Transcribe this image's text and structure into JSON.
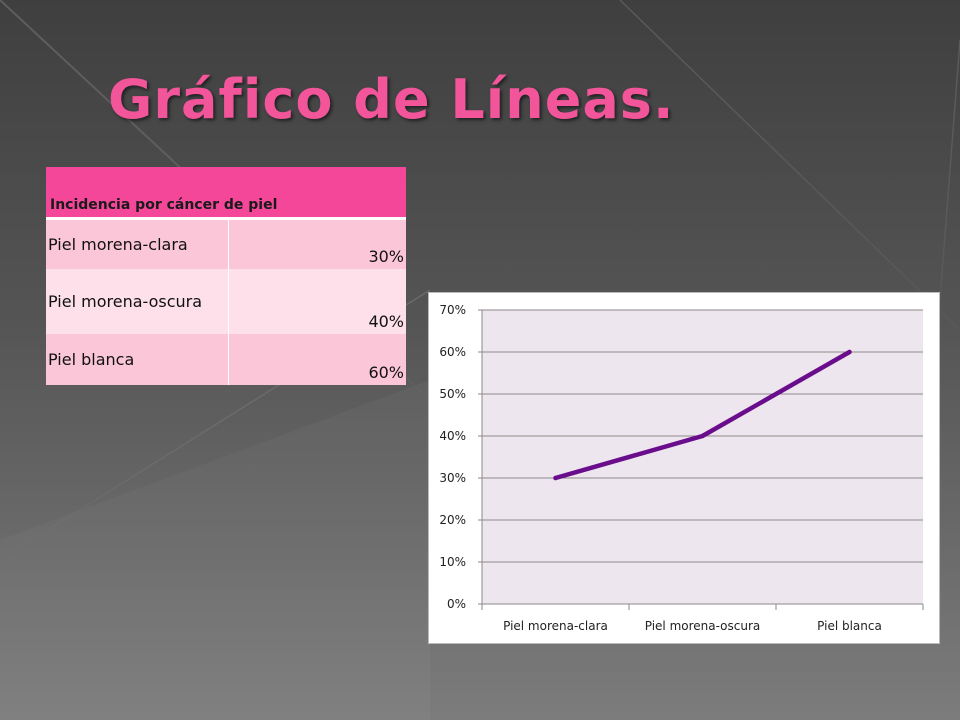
{
  "slide": {
    "title": "Gráfico de Líneas."
  },
  "table": {
    "header": "Incidencia por cáncer de piel",
    "rows": [
      {
        "label": "Piel morena-clara",
        "value": "30%"
      },
      {
        "label": "Piel morena-oscura",
        "value": "40%"
      },
      {
        "label": "Piel blanca",
        "value": "60%"
      }
    ]
  },
  "chart_data": {
    "type": "line",
    "categories": [
      "Piel morena-clara",
      "Piel morena-oscura",
      "Piel blanca"
    ],
    "series": [
      {
        "values": [
          0.3,
          0.4,
          0.6
        ],
        "color": "#6a0d8c"
      }
    ],
    "ylim": [
      0,
      0.7
    ],
    "yticks": [
      "0%",
      "10%",
      "20%",
      "30%",
      "40%",
      "50%",
      "60%",
      "70%"
    ],
    "grid": true,
    "plot_background": "#ede6ee",
    "legend": "none"
  }
}
